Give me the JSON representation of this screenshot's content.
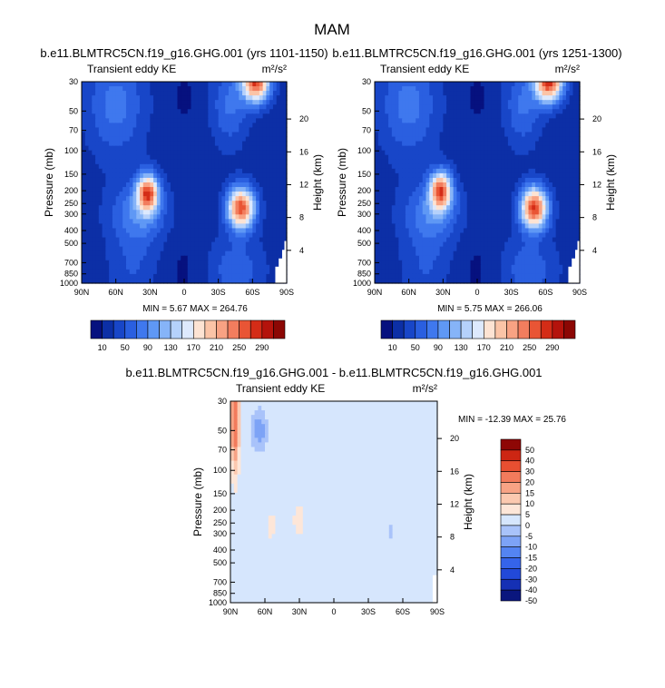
{
  "figure_title": "MAM",
  "chart_data": [
    {
      "type": "heatmap",
      "title": "b.e11.BLMTRC5CN.f19_g16.GHG.001 (yrs 1101-1150)",
      "subtitle_left": "Transient eddy KE",
      "units": "m²/s²",
      "xlabel": "",
      "ylabel": "Pressure (mb)",
      "ylabel_right": "Height (km)",
      "x_ticks": [
        "90N",
        "60N",
        "30N",
        "0",
        "30S",
        "60S",
        "90S"
      ],
      "y_ticks": [
        "30",
        "50",
        "70",
        "100",
        "150",
        "200",
        "250",
        "300",
        "400",
        "500",
        "700",
        "850",
        "1000"
      ],
      "y_ticks_right": [
        "20",
        "16",
        "12",
        "8",
        "4"
      ],
      "min_label": "MIN = 5.67",
      "max_label": "MAX = 264.76",
      "colorbar_labels": [
        "10",
        "50",
        "90",
        "130",
        "170",
        "210",
        "250",
        "290"
      ],
      "features": [
        {
          "lat": -60,
          "p": 30,
          "amp": 265,
          "type": "stratospheric jet max"
        },
        {
          "lat": 32,
          "p": 210,
          "amp": 235,
          "type": "NH jet max"
        },
        {
          "lat": -50,
          "p": 260,
          "amp": 250,
          "type": "SH jet max"
        }
      ]
    },
    {
      "type": "heatmap",
      "title": "b.e11.BLMTRC5CN.f19_g16.GHG.001 (yrs 1251-1300)",
      "subtitle_left": "Transient eddy KE",
      "units": "m²/s²",
      "xlabel": "",
      "ylabel": "Pressure (mb)",
      "ylabel_right": "Height (km)",
      "x_ticks": [
        "90N",
        "60N",
        "30N",
        "0",
        "30S",
        "60S",
        "90S"
      ],
      "y_ticks": [
        "30",
        "50",
        "70",
        "100",
        "150",
        "200",
        "250",
        "300",
        "400",
        "500",
        "700",
        "850",
        "1000"
      ],
      "y_ticks_right": [
        "20",
        "16",
        "12",
        "8",
        "4"
      ],
      "min_label": "MIN = 5.75",
      "max_label": "MAX = 266.06",
      "colorbar_labels": [
        "10",
        "50",
        "90",
        "130",
        "170",
        "210",
        "250",
        "290"
      ],
      "features": [
        {
          "lat": -60,
          "p": 30,
          "amp": 266,
          "type": "stratospheric jet max"
        },
        {
          "lat": 32,
          "p": 200,
          "amp": 230,
          "type": "NH jet max"
        },
        {
          "lat": -50,
          "p": 260,
          "amp": 255,
          "type": "SH jet max"
        }
      ]
    },
    {
      "type": "heatmap",
      "title": "b.e11.BLMTRC5CN.f19_g16.GHG.001 - b.e11.BLMTRC5CN.f19_g16.GHG.001",
      "subtitle_left": "Transient eddy KE",
      "units": "m²/s²",
      "xlabel": "",
      "ylabel": "Pressure (mb)",
      "ylabel_right": "Height (km)",
      "x_ticks": [
        "90N",
        "60N",
        "30N",
        "0",
        "30S",
        "60S",
        "90S"
      ],
      "y_ticks": [
        "30",
        "50",
        "70",
        "100",
        "150",
        "200",
        "250",
        "300",
        "400",
        "500",
        "700",
        "850",
        "1000"
      ],
      "y_ticks_right": [
        "20",
        "16",
        "12",
        "8",
        "4"
      ],
      "min_label": "MIN = -12.39",
      "max_label": "MAX = 25.76",
      "colorbar_labels": [
        "50",
        "40",
        "30",
        "20",
        "15",
        "10",
        "5",
        "0",
        "-5",
        "-10",
        "-15",
        "-20",
        "-30",
        "-40",
        "-50"
      ]
    }
  ]
}
